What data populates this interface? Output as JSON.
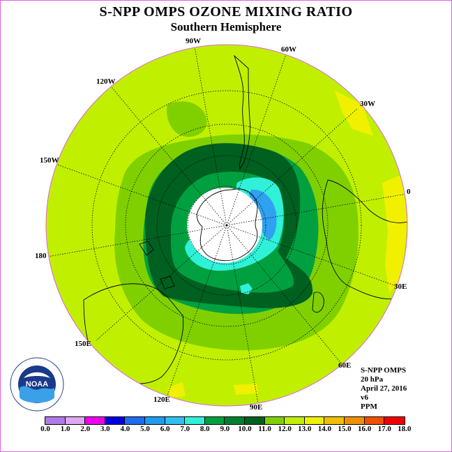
{
  "title": "S-NPP OMPS OZONE MIXING RATIO",
  "subtitle": "Southern Hemisphere",
  "longitude_labels": [
    "90W",
    "60W",
    "30W",
    "0",
    "30E",
    "60E",
    "90E",
    "120E",
    "150E",
    "180",
    "150W",
    "120W"
  ],
  "info": {
    "instrument": "S-NPP OMPS",
    "level": "20 hPa",
    "date": "April 27, 2016",
    "version": "v6",
    "units": "PPM"
  },
  "logo_text": "NOAA",
  "colorbar": {
    "ticks": [
      "0.0",
      "1.0",
      "2.0",
      "3.0",
      "4.0",
      "5.0",
      "6.0",
      "7.0",
      "8.0",
      "9.0",
      "10.0",
      "11.0",
      "12.0",
      "13.0",
      "14.0",
      "15.0",
      "16.0",
      "17.0",
      "18.0"
    ],
    "colors": [
      "#b07ae8",
      "#e0a8f0",
      "#ee00ee",
      "#0000e0",
      "#1e6cf0",
      "#1e9cf0",
      "#30c0f0",
      "#30f0d8",
      "#00a040",
      "#008030",
      "#006020",
      "#80d000",
      "#c0f000",
      "#f0f000",
      "#f0c000",
      "#f09000",
      "#f05000",
      "#f00000",
      "#805030"
    ]
  },
  "map_colors": {
    "background": "#c0f000",
    "ring_light_green": "#80d000",
    "ring_mid_green": "#00a040",
    "ring_dark_green": "#006020",
    "cyan": "#30f0d8",
    "blue": "#30a0f0",
    "yellow": "#f0f000",
    "polar_night": "#ffffff"
  }
}
